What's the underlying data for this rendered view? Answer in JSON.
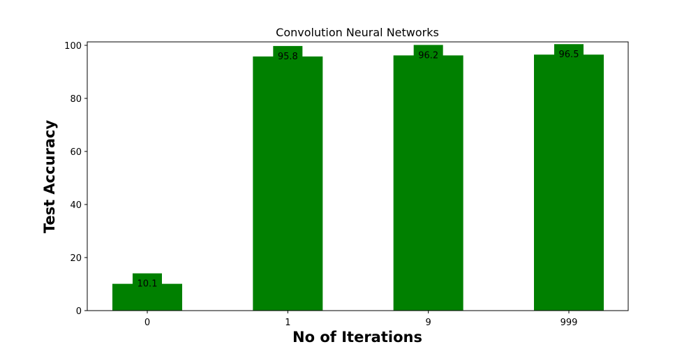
{
  "chart_data": {
    "type": "bar",
    "title": "Convolution Neural Networks",
    "xlabel": "No of Iterations",
    "ylabel": "Test Accuracy",
    "categories": [
      "0",
      "1",
      "9",
      "999"
    ],
    "values": [
      10.1,
      95.8,
      96.2,
      96.5
    ],
    "data_labels": [
      "10.1",
      "95.8",
      "96.2",
      "96.5"
    ],
    "ylim": [
      0,
      101.3
    ],
    "yticks": [
      "0",
      "20",
      "40",
      "60",
      "80",
      "100"
    ],
    "grid": false,
    "legend": "none",
    "bar_color": "#008000"
  }
}
